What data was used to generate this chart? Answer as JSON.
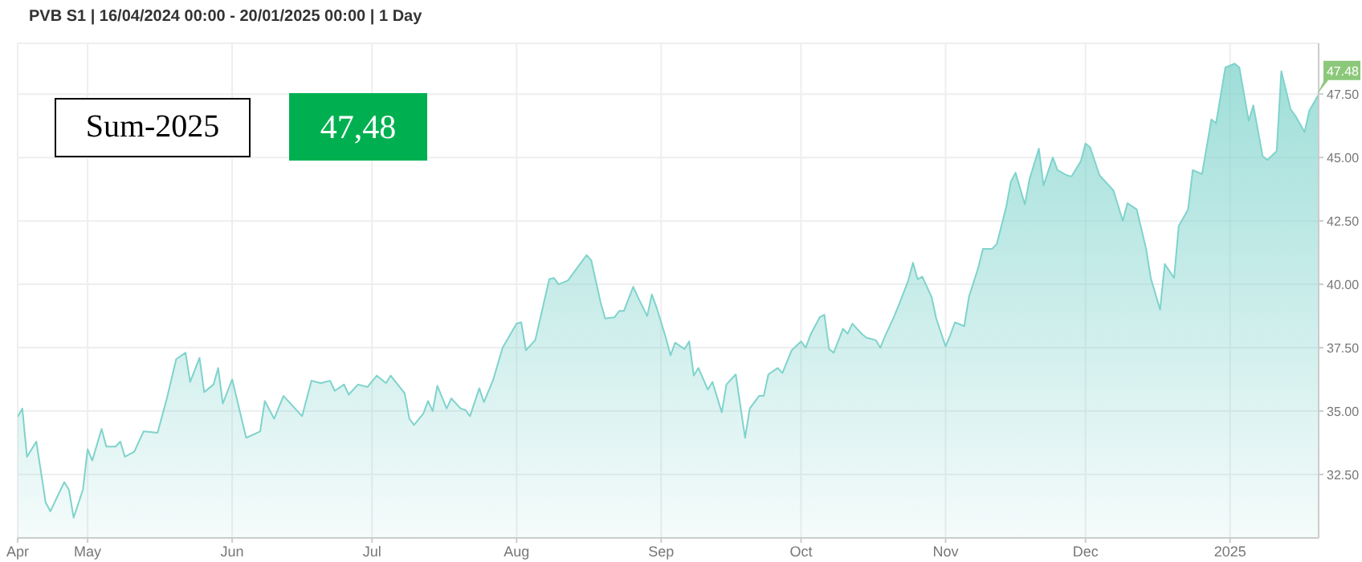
{
  "chart_data": {
    "type": "area",
    "title": "PVB S1 | 16/04/2024 00:00 - 20/01/2025 00:00 | 1 Day",
    "annotations": [
      "Sum-2025",
      "47,48",
      {
        "text": "47.48",
        "x": "2025-01-20",
        "y": 47.48
      }
    ],
    "xlim": [
      "2024-04-16",
      "2025-01-20"
    ],
    "xticks": [
      {
        "value": "2024-04-16",
        "label": "Apr"
      },
      {
        "value": "2024-05-01",
        "label": "May"
      },
      {
        "value": "2024-06-01",
        "label": "Jun"
      },
      {
        "value": "2024-07-01",
        "label": "Jul"
      },
      {
        "value": "2024-08-01",
        "label": "Aug"
      },
      {
        "value": "2024-09-01",
        "label": "Sep"
      },
      {
        "value": "2024-10-01",
        "label": "Oct"
      },
      {
        "value": "2024-11-01",
        "label": "Nov"
      },
      {
        "value": "2024-12-01",
        "label": "Dec"
      },
      {
        "value": "2025-01-01",
        "label": "2025"
      }
    ],
    "ylim": [
      30,
      49.5
    ],
    "yticks": [
      {
        "value": 32.5,
        "label": "32.50"
      },
      {
        "value": 35,
        "label": "35.00"
      },
      {
        "value": 37.5,
        "label": "37.50"
      },
      {
        "value": 40,
        "label": "40.00"
      },
      {
        "value": 42.5,
        "label": "42.50"
      },
      {
        "value": 45,
        "label": "45.00"
      },
      {
        "value": 47.5,
        "label": "47.50"
      }
    ],
    "grid": true,
    "marker": "none",
    "line_style": "solid",
    "series": [
      {
        "color": "#7fd3cc",
        "x": [
          "2024-04-16",
          "2024-04-17",
          "2024-04-18",
          "2024-04-20",
          "2024-04-21",
          "2024-04-22",
          "2024-04-23",
          "2024-04-26",
          "2024-04-27",
          "2024-04-28",
          "2024-04-30",
          "2024-05-01",
          "2024-05-02",
          "2024-05-04",
          "2024-05-05",
          "2024-05-07",
          "2024-05-08",
          "2024-05-09",
          "2024-05-11",
          "2024-05-13",
          "2024-05-16",
          "2024-05-18",
          "2024-05-20",
          "2024-05-22",
          "2024-05-23",
          "2024-05-25",
          "2024-05-26",
          "2024-05-28",
          "2024-05-29",
          "2024-05-30",
          "2024-06-01",
          "2024-06-04",
          "2024-06-07",
          "2024-06-08",
          "2024-06-10",
          "2024-06-12",
          "2024-06-13",
          "2024-06-16",
          "2024-06-18",
          "2024-06-20",
          "2024-06-22",
          "2024-06-23",
          "2024-06-25",
          "2024-06-26",
          "2024-06-28",
          "2024-06-30",
          "2024-07-02",
          "2024-07-04",
          "2024-07-05",
          "2024-07-08",
          "2024-07-09",
          "2024-07-10",
          "2024-07-12",
          "2024-07-13",
          "2024-07-14",
          "2024-07-15",
          "2024-07-17",
          "2024-07-18",
          "2024-07-20",
          "2024-07-21",
          "2024-07-22",
          "2024-07-24",
          "2024-07-25",
          "2024-07-27",
          "2024-07-29",
          "2024-08-01",
          "2024-08-02",
          "2024-08-03",
          "2024-08-05",
          "2024-08-08",
          "2024-08-09",
          "2024-08-10",
          "2024-08-12",
          "2024-08-16",
          "2024-08-17",
          "2024-08-19",
          "2024-08-20",
          "2024-08-22",
          "2024-08-23",
          "2024-08-24",
          "2024-08-26",
          "2024-08-27",
          "2024-08-29",
          "2024-08-30",
          "2024-08-31",
          "2024-09-02",
          "2024-09-03",
          "2024-09-04",
          "2024-09-06",
          "2024-09-07",
          "2024-09-08",
          "2024-09-09",
          "2024-09-11",
          "2024-09-12",
          "2024-09-14",
          "2024-09-15",
          "2024-09-17",
          "2024-09-19",
          "2024-09-20",
          "2024-09-22",
          "2024-09-23",
          "2024-09-24",
          "2024-09-26",
          "2024-09-27",
          "2024-09-29",
          "2024-10-01",
          "2024-10-02",
          "2024-10-03",
          "2024-10-05",
          "2024-10-06",
          "2024-10-07",
          "2024-10-08",
          "2024-10-10",
          "2024-10-11",
          "2024-10-12",
          "2024-10-14",
          "2024-10-15",
          "2024-10-17",
          "2024-10-18",
          "2024-10-19",
          "2024-10-21",
          "2024-10-22",
          "2024-10-24",
          "2024-10-25",
          "2024-10-26",
          "2024-10-27",
          "2024-10-29",
          "2024-10-30",
          "2024-11-01",
          "2024-11-02",
          "2024-11-03",
          "2024-11-05",
          "2024-11-06",
          "2024-11-08",
          "2024-11-09",
          "2024-11-11",
          "2024-11-12",
          "2024-11-14",
          "2024-11-15",
          "2024-11-16",
          "2024-11-18",
          "2024-11-19",
          "2024-11-21",
          "2024-11-22",
          "2024-11-24",
          "2024-11-25",
          "2024-11-27",
          "2024-11-28",
          "2024-11-30",
          "2024-12-01",
          "2024-12-02",
          "2024-12-04",
          "2024-12-06",
          "2024-12-07",
          "2024-12-09",
          "2024-12-10",
          "2024-12-12",
          "2024-12-14",
          "2024-12-15",
          "2024-12-17",
          "2024-12-18",
          "2024-12-20",
          "2024-12-21",
          "2024-12-23",
          "2024-12-24",
          "2024-12-26",
          "2024-12-28",
          "2024-12-29",
          "2024-12-31",
          "2025-01-02",
          "2025-01-03",
          "2025-01-05",
          "2025-01-06",
          "2025-01-08",
          "2025-01-09",
          "2025-01-11",
          "2025-01-12",
          "2025-01-14",
          "2025-01-15",
          "2025-01-17",
          "2025-01-18",
          "2025-01-20"
        ],
        "values": [
          34.78,
          35.1,
          33.2,
          33.8,
          32.6,
          31.4,
          31.05,
          32.2,
          31.9,
          30.8,
          31.9,
          33.5,
          33.05,
          34.3,
          33.6,
          33.6,
          33.8,
          33.2,
          33.4,
          34.2,
          34.15,
          35.5,
          37.05,
          37.3,
          36.15,
          37.1,
          35.75,
          36.05,
          36.7,
          35.3,
          36.25,
          33.95,
          34.2,
          35.4,
          34.7,
          35.6,
          35.4,
          34.8,
          36.2,
          36.1,
          36.2,
          35.8,
          36.05,
          35.65,
          36.05,
          35.95,
          36.4,
          36.1,
          36.4,
          35.7,
          34.7,
          34.45,
          34.9,
          35.4,
          35.0,
          36.0,
          35.1,
          35.5,
          35.1,
          35.05,
          34.8,
          35.9,
          35.35,
          36.25,
          37.5,
          38.45,
          38.5,
          37.4,
          37.8,
          40.2,
          40.25,
          40.0,
          40.15,
          41.15,
          40.95,
          39.3,
          38.65,
          38.7,
          38.95,
          38.95,
          39.9,
          39.5,
          38.75,
          39.6,
          39.1,
          37.9,
          37.2,
          37.7,
          37.45,
          37.75,
          36.4,
          36.7,
          35.85,
          36.15,
          34.95,
          36.05,
          36.45,
          33.95,
          35.1,
          35.6,
          35.6,
          36.45,
          36.7,
          36.5,
          37.4,
          37.75,
          37.5,
          38.0,
          38.7,
          38.8,
          37.45,
          37.3,
          38.25,
          38.05,
          38.45,
          38.05,
          37.9,
          37.8,
          37.5,
          37.95,
          38.75,
          39.2,
          40.15,
          40.85,
          40.2,
          40.3,
          39.5,
          38.65,
          37.55,
          38.0,
          38.5,
          38.35,
          39.5,
          40.65,
          41.4,
          41.4,
          41.6,
          43.05,
          44.05,
          44.4,
          43.15,
          44.15,
          45.35,
          43.9,
          45.0,
          44.5,
          44.3,
          44.25,
          44.85,
          45.55,
          45.4,
          44.3,
          43.9,
          43.7,
          42.5,
          43.2,
          42.95,
          41.4,
          40.25,
          39.0,
          40.8,
          40.25,
          42.3,
          42.95,
          44.5,
          44.35,
          46.5,
          46.35,
          48.55,
          48.7,
          48.55,
          46.45,
          47.05,
          45.05,
          44.9,
          45.25,
          48.4,
          46.9,
          46.65,
          46.0,
          46.85,
          47.48
        ]
      }
    ]
  }
}
